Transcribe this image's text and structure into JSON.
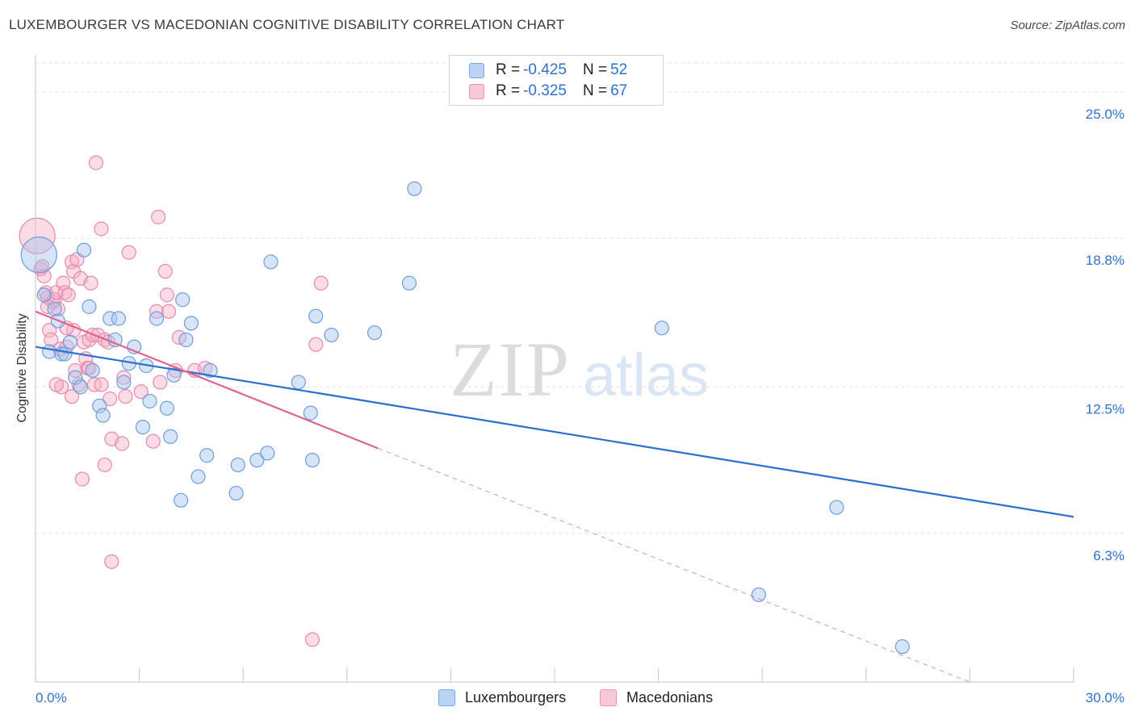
{
  "title": "LUXEMBOURGER VS MACEDONIAN COGNITIVE DISABILITY CORRELATION CHART",
  "source": "Source: ZipAtlas.com",
  "watermark": {
    "zip": "ZIP",
    "atlas": "atlas"
  },
  "legend": {
    "rows": [
      {
        "r_label": "R = ",
        "r_value": "-0.425",
        "n_label": "N = ",
        "n_value": "52",
        "fill": "#b9d3f5",
        "stroke": "#7ea8e0"
      },
      {
        "r_label": "R = ",
        "r_value": "-0.325",
        "n_label": "N = ",
        "n_value": "67",
        "fill": "#f9c8d7",
        "stroke": "#eb93b0"
      }
    ]
  },
  "bottom_legend": [
    {
      "label": "Luxembourgers",
      "fill": "#b9d3f5",
      "stroke": "#7ea8e0"
    },
    {
      "label": "Macedonians",
      "fill": "#f9c8d7",
      "stroke": "#eb93b0"
    }
  ],
  "colors": {
    "blue_line": "#2a6fd0",
    "pink_line": "#e0648e",
    "blue_point_fill": "rgba(165,196,240,0.45)",
    "blue_point_stroke": "#6f9ddd",
    "pink_point_fill": "rgba(246,176,199,0.45)",
    "pink_point_stroke": "#e88aab",
    "axis_label": "#2e72d0",
    "grid": "#e3e3e3"
  },
  "chart_data": {
    "type": "scatter",
    "title": "LUXEMBOURGER VS MACEDONIAN COGNITIVE DISABILITY CORRELATION CHART",
    "xlabel": "",
    "ylabel": "Cognitive Disability",
    "xlim": [
      0,
      30
    ],
    "ylim": [
      0,
      26.5
    ],
    "x_tick_labels": [
      "0.0%",
      "30.0%"
    ],
    "y_ticks": [
      6.3,
      12.5,
      18.8,
      25.0
    ],
    "y_tick_labels": [
      "6.3%",
      "12.5%",
      "18.8%",
      "25.0%"
    ],
    "grid": "horizontal dashed",
    "series": [
      {
        "name": "Luxembourgers",
        "r": -0.425,
        "n": 52,
        "trend": {
          "x": [
            0.0,
            30.0
          ],
          "y": [
            14.2,
            7.0
          ]
        },
        "points": [
          {
            "x": 0.1,
            "y": 18.1,
            "big": true
          },
          {
            "x": 0.25,
            "y": 16.4
          },
          {
            "x": 0.4,
            "y": 14.0
          },
          {
            "x": 0.55,
            "y": 15.8
          },
          {
            "x": 0.65,
            "y": 15.3
          },
          {
            "x": 0.75,
            "y": 13.9
          },
          {
            "x": 0.85,
            "y": 13.9
          },
          {
            "x": 1.0,
            "y": 14.4
          },
          {
            "x": 1.15,
            "y": 12.9
          },
          {
            "x": 1.3,
            "y": 12.5
          },
          {
            "x": 1.4,
            "y": 18.3
          },
          {
            "x": 1.55,
            "y": 15.9
          },
          {
            "x": 1.65,
            "y": 13.2
          },
          {
            "x": 1.85,
            "y": 11.7
          },
          {
            "x": 1.95,
            "y": 11.3
          },
          {
            "x": 2.15,
            "y": 15.4
          },
          {
            "x": 2.3,
            "y": 14.5
          },
          {
            "x": 2.4,
            "y": 15.4
          },
          {
            "x": 2.55,
            "y": 12.7
          },
          {
            "x": 2.7,
            "y": 13.5
          },
          {
            "x": 2.85,
            "y": 14.2
          },
          {
            "x": 3.1,
            "y": 10.8
          },
          {
            "x": 3.2,
            "y": 13.4
          },
          {
            "x": 3.3,
            "y": 11.9
          },
          {
            "x": 3.5,
            "y": 15.4
          },
          {
            "x": 3.8,
            "y": 11.6
          },
          {
            "x": 3.9,
            "y": 10.4
          },
          {
            "x": 4.0,
            "y": 13.0
          },
          {
            "x": 4.2,
            "y": 7.7
          },
          {
            "x": 4.25,
            "y": 16.2
          },
          {
            "x": 4.35,
            "y": 14.5
          },
          {
            "x": 4.5,
            "y": 15.2
          },
          {
            "x": 4.7,
            "y": 8.7
          },
          {
            "x": 4.95,
            "y": 9.6
          },
          {
            "x": 5.05,
            "y": 13.2
          },
          {
            "x": 5.8,
            "y": 8.0
          },
          {
            "x": 5.85,
            "y": 9.2
          },
          {
            "x": 6.4,
            "y": 9.4
          },
          {
            "x": 6.7,
            "y": 9.7
          },
          {
            "x": 6.8,
            "y": 17.8
          },
          {
            "x": 7.6,
            "y": 12.7
          },
          {
            "x": 7.95,
            "y": 11.4
          },
          {
            "x": 8.0,
            "y": 9.4
          },
          {
            "x": 8.1,
            "y": 15.5
          },
          {
            "x": 8.55,
            "y": 14.7
          },
          {
            "x": 9.8,
            "y": 14.8
          },
          {
            "x": 10.8,
            "y": 16.9
          },
          {
            "x": 10.95,
            "y": 20.9
          },
          {
            "x": 18.1,
            "y": 15.0
          },
          {
            "x": 20.9,
            "y": 3.7
          },
          {
            "x": 23.15,
            "y": 7.4
          },
          {
            "x": 25.05,
            "y": 1.5
          }
        ]
      },
      {
        "name": "Macedonians",
        "r": -0.325,
        "n": 67,
        "trend": {
          "x": [
            0.0,
            9.9
          ],
          "y": [
            15.7,
            9.9
          ]
        },
        "trend_dashed": {
          "x": [
            9.9,
            27.0
          ],
          "y": [
            9.9,
            0.0
          ]
        },
        "points": [
          {
            "x": 0.05,
            "y": 18.9,
            "big": true
          },
          {
            "x": 0.15,
            "y": 17.5
          },
          {
            "x": 0.2,
            "y": 17.6
          },
          {
            "x": 0.25,
            "y": 17.2
          },
          {
            "x": 0.3,
            "y": 16.5
          },
          {
            "x": 0.35,
            "y": 16.3
          },
          {
            "x": 0.4,
            "y": 14.9
          },
          {
            "x": 0.45,
            "y": 14.5
          },
          {
            "x": 0.5,
            "y": 16.1
          },
          {
            "x": 0.55,
            "y": 16.2
          },
          {
            "x": 0.6,
            "y": 16.5
          },
          {
            "x": 0.65,
            "y": 15.8
          },
          {
            "x": 0.7,
            "y": 14.1
          },
          {
            "x": 0.75,
            "y": 12.5
          },
          {
            "x": 0.8,
            "y": 16.9
          },
          {
            "x": 0.85,
            "y": 16.5
          },
          {
            "x": 0.9,
            "y": 14.2
          },
          {
            "x": 0.95,
            "y": 16.4
          },
          {
            "x": 1.05,
            "y": 17.8
          },
          {
            "x": 1.05,
            "y": 12.1
          },
          {
            "x": 1.1,
            "y": 14.9
          },
          {
            "x": 1.1,
            "y": 17.4
          },
          {
            "x": 1.15,
            "y": 13.2
          },
          {
            "x": 1.2,
            "y": 17.9
          },
          {
            "x": 1.25,
            "y": 12.6
          },
          {
            "x": 1.3,
            "y": 17.1
          },
          {
            "x": 1.35,
            "y": 8.6
          },
          {
            "x": 1.4,
            "y": 14.4
          },
          {
            "x": 1.45,
            "y": 13.7
          },
          {
            "x": 1.5,
            "y": 13.3
          },
          {
            "x": 1.55,
            "y": 14.5
          },
          {
            "x": 1.6,
            "y": 16.9
          },
          {
            "x": 1.65,
            "y": 14.7
          },
          {
            "x": 1.7,
            "y": 12.6
          },
          {
            "x": 1.75,
            "y": 22.0
          },
          {
            "x": 1.8,
            "y": 14.7
          },
          {
            "x": 1.9,
            "y": 12.6
          },
          {
            "x": 1.9,
            "y": 19.2
          },
          {
            "x": 2.0,
            "y": 14.5
          },
          {
            "x": 2.0,
            "y": 9.2
          },
          {
            "x": 2.1,
            "y": 14.4
          },
          {
            "x": 2.15,
            "y": 12.0
          },
          {
            "x": 2.2,
            "y": 5.1
          },
          {
            "x": 2.2,
            "y": 10.3
          },
          {
            "x": 2.5,
            "y": 10.1
          },
          {
            "x": 2.55,
            "y": 12.9
          },
          {
            "x": 2.6,
            "y": 12.1
          },
          {
            "x": 2.7,
            "y": 18.2
          },
          {
            "x": 3.05,
            "y": 12.3
          },
          {
            "x": 3.4,
            "y": 10.2
          },
          {
            "x": 3.5,
            "y": 15.7
          },
          {
            "x": 3.55,
            "y": 19.7
          },
          {
            "x": 3.6,
            "y": 12.7
          },
          {
            "x": 3.75,
            "y": 17.4
          },
          {
            "x": 3.8,
            "y": 16.4
          },
          {
            "x": 3.85,
            "y": 15.7
          },
          {
            "x": 4.05,
            "y": 13.2
          },
          {
            "x": 4.15,
            "y": 14.6
          },
          {
            "x": 4.6,
            "y": 13.2
          },
          {
            "x": 4.9,
            "y": 13.3
          },
          {
            "x": 8.1,
            "y": 14.3
          },
          {
            "x": 8.25,
            "y": 16.9
          },
          {
            "x": 8.0,
            "y": 1.8
          },
          {
            "x": 0.35,
            "y": 15.9
          },
          {
            "x": 0.9,
            "y": 15.0
          },
          {
            "x": 1.55,
            "y": 13.3
          },
          {
            "x": 0.6,
            "y": 12.6
          }
        ]
      }
    ]
  }
}
